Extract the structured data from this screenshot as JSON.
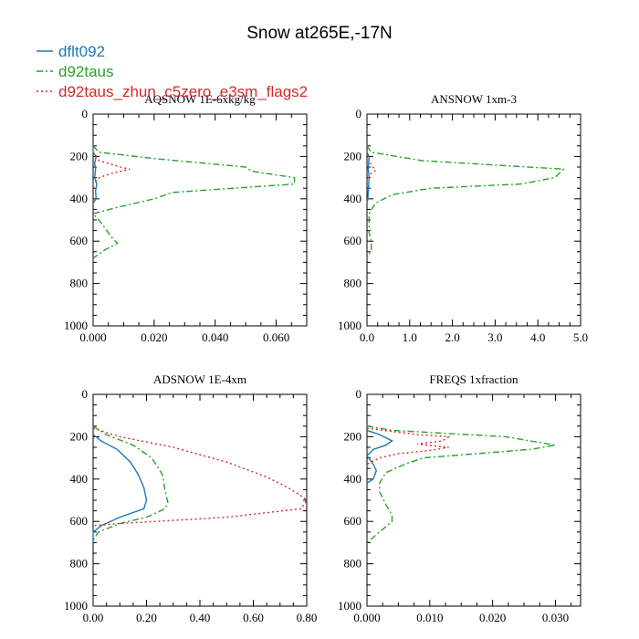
{
  "title": "Snow at265E,-17N",
  "legend": [
    {
      "label": "dflt092",
      "color": "#1f77b4",
      "dash": "solid"
    },
    {
      "label": "d92taus",
      "color": "#2ca02c",
      "dash": "dashdot"
    },
    {
      "label": "d92taus_zhun_c5zero_e3sm_flags2",
      "color": "#d62728",
      "dash": "dot"
    }
  ],
  "chart_data": [
    {
      "type": "line",
      "title": "AQSNOW  1E-6xkg/kg",
      "xlim": [
        0,
        0.07
      ],
      "ylim": [
        1000,
        0
      ],
      "xticks": [
        0,
        0.02,
        0.04,
        0.06
      ],
      "xtick_labels": [
        "0.000",
        "0.020",
        "0.040",
        "0.060"
      ],
      "yticks": [
        0,
        200,
        400,
        600,
        800,
        1000
      ],
      "ytick_labels": [
        "0",
        "200",
        "400",
        "600",
        "800",
        "1000"
      ],
      "series": [
        {
          "name": "dflt092",
          "points": [
            [
              0,
              160
            ],
            [
              0,
              180
            ],
            [
              0.001,
              200
            ],
            [
              0.0005,
              230
            ],
            [
              0.0008,
              260
            ],
            [
              0.0005,
              300
            ],
            [
              0.0012,
              330
            ],
            [
              0.0008,
              360
            ],
            [
              0.001,
              400
            ],
            [
              0,
              420
            ]
          ]
        },
        {
          "name": "d92taus",
          "points": [
            [
              0,
              150
            ],
            [
              0.002,
              180
            ],
            [
              0.02,
              210
            ],
            [
              0.05,
              250
            ],
            [
              0.052,
              270
            ],
            [
              0.066,
              300
            ],
            [
              0.066,
              330
            ],
            [
              0.026,
              370
            ],
            [
              0.02,
              400
            ],
            [
              0.008,
              440
            ],
            [
              0,
              470
            ],
            [
              0.003,
              520
            ],
            [
              0.006,
              580
            ],
            [
              0.008,
              610
            ],
            [
              0.004,
              640
            ],
            [
              0,
              680
            ]
          ]
        },
        {
          "name": "d92taus_zhun_c5zero_e3sm_flags2",
          "points": [
            [
              0,
              180
            ],
            [
              0.002,
              220
            ],
            [
              0.009,
              250
            ],
            [
              0.012,
              260
            ],
            [
              0.006,
              280
            ],
            [
              0.002,
              300
            ],
            [
              0,
              330
            ]
          ]
        }
      ]
    },
    {
      "type": "line",
      "title": "ANSNOW  1xm-3",
      "xlim": [
        0,
        5
      ],
      "ylim": [
        1000,
        0
      ],
      "xticks": [
        0,
        1,
        2,
        3,
        4,
        5
      ],
      "xtick_labels": [
        "0.0",
        "1.0",
        "2.0",
        "3.0",
        "4.0",
        "5.0"
      ],
      "yticks": [
        0,
        200,
        400,
        600,
        800,
        1000
      ],
      "ytick_labels": [
        "0",
        "200",
        "400",
        "600",
        "800",
        "1000"
      ],
      "series": [
        {
          "name": "dflt092",
          "points": [
            [
              0,
              180
            ],
            [
              0.05,
              200
            ],
            [
              0.03,
              260
            ],
            [
              0.05,
              300
            ],
            [
              0.02,
              400
            ],
            [
              0,
              420
            ]
          ]
        },
        {
          "name": "d92taus",
          "points": [
            [
              0,
              150
            ],
            [
              0.1,
              180
            ],
            [
              1.3,
              220
            ],
            [
              4.6,
              260
            ],
            [
              4.4,
              300
            ],
            [
              3.6,
              330
            ],
            [
              1.5,
              350
            ],
            [
              0.6,
              380
            ],
            [
              0.2,
              420
            ],
            [
              0.05,
              470
            ],
            [
              0.05,
              560
            ],
            [
              0.1,
              600
            ],
            [
              0.1,
              640
            ],
            [
              0,
              680
            ]
          ]
        },
        {
          "name": "d92taus_zhun_c5zero_e3sm_flags2",
          "points": [
            [
              0,
              190
            ],
            [
              0.1,
              240
            ],
            [
              0.2,
              265
            ],
            [
              0.1,
              280
            ],
            [
              0,
              310
            ]
          ]
        }
      ]
    },
    {
      "type": "line",
      "title": "ADSNOW  1E-4xm",
      "xlim": [
        0,
        0.8
      ],
      "ylim": [
        1000,
        0
      ],
      "xticks": [
        0,
        0.2,
        0.4,
        0.6,
        0.8
      ],
      "xtick_labels": [
        "0.00",
        "0.20",
        "0.40",
        "0.60",
        "0.80"
      ],
      "yticks": [
        0,
        200,
        400,
        600,
        800,
        1000
      ],
      "ytick_labels": [
        "0",
        "200",
        "400",
        "600",
        "800",
        "1000"
      ],
      "series": [
        {
          "name": "dflt092",
          "points": [
            [
              0,
              190
            ],
            [
              0.03,
              220
            ],
            [
              0.09,
              260
            ],
            [
              0.14,
              320
            ],
            [
              0.17,
              380
            ],
            [
              0.19,
              440
            ],
            [
              0.2,
              500
            ],
            [
              0.19,
              540
            ],
            [
              0.1,
              580
            ],
            [
              0.03,
              620
            ],
            [
              0,
              650
            ],
            [
              0,
              700
            ]
          ]
        },
        {
          "name": "d92taus",
          "points": [
            [
              0,
              150
            ],
            [
              0.05,
              190
            ],
            [
              0.15,
              240
            ],
            [
              0.22,
              300
            ],
            [
              0.26,
              380
            ],
            [
              0.27,
              460
            ],
            [
              0.28,
              510
            ],
            [
              0.27,
              540
            ],
            [
              0.2,
              580
            ],
            [
              0.1,
              610
            ],
            [
              0.02,
              650
            ],
            [
              0,
              690
            ]
          ]
        },
        {
          "name": "d92taus_zhun_c5zero_e3sm_flags2",
          "points": [
            [
              0,
              160
            ],
            [
              0.1,
              200
            ],
            [
              0.3,
              250
            ],
            [
              0.5,
              320
            ],
            [
              0.65,
              390
            ],
            [
              0.73,
              440
            ],
            [
              0.78,
              480
            ],
            [
              0.8,
              500
            ],
            [
              0.78,
              540
            ],
            [
              0.5,
              580
            ],
            [
              0.1,
              610
            ],
            [
              0,
              620
            ]
          ]
        }
      ]
    },
    {
      "type": "line",
      "title": "FREQS  1xfraction",
      "xlim": [
        0,
        0.034
      ],
      "ylim": [
        1000,
        0
      ],
      "xticks": [
        0,
        0.01,
        0.02,
        0.03
      ],
      "xtick_labels": [
        "0.000",
        "0.010",
        "0.020",
        "0.030"
      ],
      "yticks": [
        0,
        200,
        400,
        600,
        800,
        1000
      ],
      "ytick_labels": [
        "0",
        "200",
        "400",
        "600",
        "800",
        "1000"
      ],
      "series": [
        {
          "name": "dflt092",
          "points": [
            [
              0,
              170
            ],
            [
              0.002,
              190
            ],
            [
              0.004,
              220
            ],
            [
              0.003,
              240
            ],
            [
              0.001,
              260
            ],
            [
              0,
              290
            ],
            [
              0.001,
              330
            ],
            [
              0.0015,
              360
            ],
            [
              0.001,
              400
            ],
            [
              0,
              420
            ]
          ]
        },
        {
          "name": "d92taus",
          "points": [
            [
              0,
              150
            ],
            [
              0.004,
              170
            ],
            [
              0.022,
              200
            ],
            [
              0.03,
              240
            ],
            [
              0.026,
              260
            ],
            [
              0.009,
              300
            ],
            [
              0.006,
              330
            ],
            [
              0.003,
              370
            ],
            [
              0.002,
              420
            ],
            [
              0.002,
              460
            ],
            [
              0.003,
              520
            ],
            [
              0.004,
              570
            ],
            [
              0.004,
              600
            ],
            [
              0.002,
              650
            ],
            [
              0,
              700
            ]
          ]
        },
        {
          "name": "d92taus_zhun_c5zero_e3sm_flags2",
          "points": [
            [
              0,
              160
            ],
            [
              0.008,
              190
            ],
            [
              0.013,
              200
            ],
            [
              0.012,
              220
            ],
            [
              0.008,
              235
            ],
            [
              0.013,
              250
            ],
            [
              0.01,
              265
            ],
            [
              0.005,
              280
            ],
            [
              0.002,
              300
            ],
            [
              0,
              330
            ]
          ]
        }
      ]
    }
  ]
}
